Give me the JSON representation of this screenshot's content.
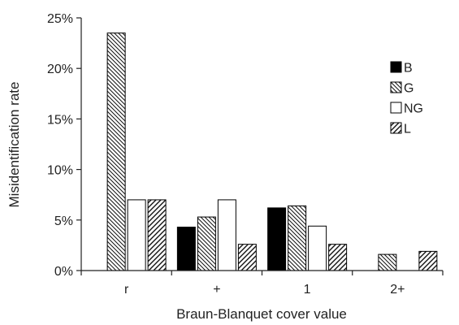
{
  "chart_data": {
    "type": "bar",
    "xlabel": "Braun-Blanquet cover value",
    "ylabel": "Misidentification rate",
    "categories": [
      "r",
      "+",
      "1",
      "2+"
    ],
    "y_ticks": [
      "0%",
      "5%",
      "10%",
      "15%",
      "20%",
      "25%"
    ],
    "ylim": [
      0,
      25
    ],
    "grid": false,
    "legend_position": "right",
    "series": [
      {
        "name": "B",
        "values": [
          null,
          4.3,
          6.2,
          null
        ],
        "pattern": "solid-black"
      },
      {
        "name": "G",
        "values": [
          23.5,
          5.3,
          6.4,
          1.6
        ],
        "pattern": "back-diagonal-hatch"
      },
      {
        "name": "NG",
        "values": [
          7.0,
          7.0,
          4.4,
          null
        ],
        "pattern": "white"
      },
      {
        "name": "L",
        "values": [
          7.0,
          2.6,
          2.6,
          1.9
        ],
        "pattern": "forward-diagonal-hatch"
      }
    ]
  }
}
